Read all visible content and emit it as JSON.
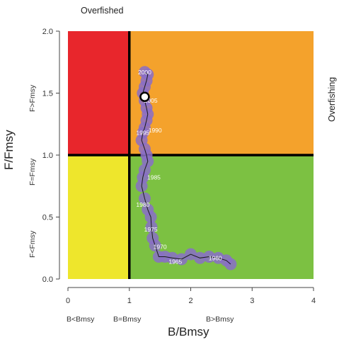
{
  "chart_data": {
    "type": "scatter",
    "title": "Overfished",
    "right_label": "Overfishing",
    "xlabel": "B/Bmsy",
    "ylabel": "F/Fmsy",
    "xlim": [
      0,
      4
    ],
    "ylim": [
      0,
      2
    ],
    "xticks": [
      "0",
      "1",
      "2",
      "3",
      "4"
    ],
    "yticks": [
      "0.0",
      "0.5",
      "1.0",
      "1.5",
      "2.0"
    ],
    "x_subtitles": [
      "B<Bmsy",
      "B=Bmsy",
      "B>Bmsy"
    ],
    "y_subtitles": [
      "F<Fmsy",
      "F=Fmsy",
      "F>Fmsy"
    ],
    "zones": [
      {
        "name": "overfished-overfishing",
        "color": "#e8262c"
      },
      {
        "name": "not-overfished-overfishing",
        "color": "#f4a22c"
      },
      {
        "name": "overfished-not-overfishing",
        "color": "#eee62c"
      },
      {
        "name": "healthy",
        "color": "#7cc142"
      }
    ],
    "reference_lines": {
      "x": 1.0,
      "y": 1.0
    },
    "series": [
      {
        "x": [
          2.65,
          2.58,
          2.45,
          2.3,
          2.15,
          2.0,
          1.85,
          1.7,
          1.58,
          1.48,
          1.42,
          1.38,
          1.36,
          1.35,
          1.3,
          1.25,
          1.2,
          1.22,
          1.25,
          1.3,
          1.28,
          1.25,
          1.2,
          1.22,
          1.25,
          1.28,
          1.3,
          1.28,
          1.25,
          1.22,
          1.25,
          1.28,
          1.3,
          1.25
        ],
        "y": [
          0.12,
          0.15,
          0.17,
          0.18,
          0.17,
          0.2,
          0.16,
          0.17,
          0.18,
          0.18,
          0.27,
          0.33,
          0.42,
          0.5,
          0.56,
          0.65,
          0.75,
          0.82,
          0.88,
          0.95,
          1.0,
          1.05,
          1.12,
          1.18,
          1.22,
          1.28,
          1.33,
          1.38,
          1.44,
          1.5,
          1.55,
          1.6,
          1.65,
          1.67
        ]
      }
    ],
    "year_labels": [
      {
        "text": "2000",
        "x": 1.25,
        "y": 1.67
      },
      {
        "text": "2005",
        "x": 1.35,
        "y": 1.44
      },
      {
        "text": "1995",
        "x": 1.22,
        "y": 1.18
      },
      {
        "text": "1990",
        "x": 1.42,
        "y": 1.2
      },
      {
        "text": "1985",
        "x": 1.4,
        "y": 0.82
      },
      {
        "text": "1980",
        "x": 1.22,
        "y": 0.6
      },
      {
        "text": "1975",
        "x": 1.35,
        "y": 0.4
      },
      {
        "text": "1970",
        "x": 1.5,
        "y": 0.26
      },
      {
        "text": "1965",
        "x": 1.75,
        "y": 0.14
      },
      {
        "text": "1960",
        "x": 2.4,
        "y": 0.17
      }
    ],
    "current_point": {
      "x": 1.25,
      "y": 1.47
    },
    "grid": false,
    "legend": "none"
  },
  "colors": {
    "point_fill": "#8a6fc7",
    "line": "#1a1a1a",
    "current_point": "#ffffff"
  }
}
